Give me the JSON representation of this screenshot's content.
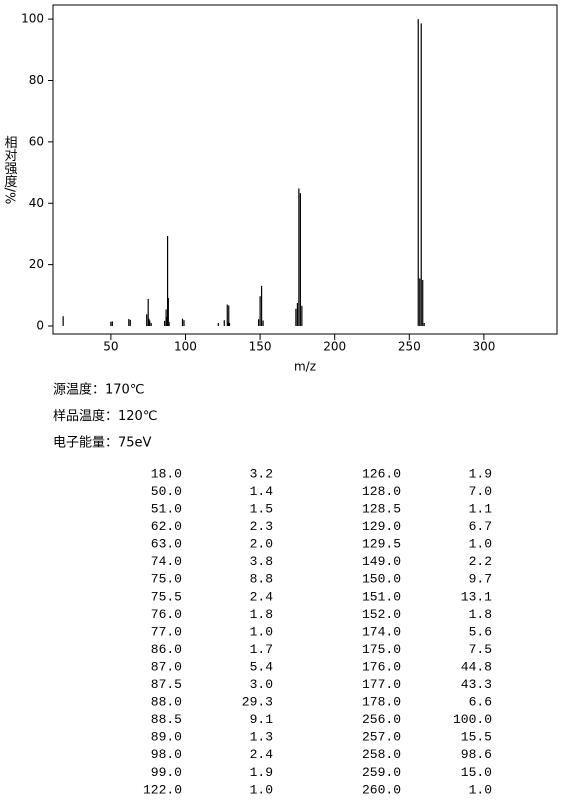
{
  "chart_data": {
    "type": "stick",
    "color": "#000000",
    "x": [
      18,
      50,
      51,
      62,
      63,
      74,
      75,
      75.5,
      76,
      77,
      86,
      87,
      87.5,
      88,
      88.5,
      89,
      98,
      99,
      122,
      126,
      128,
      128.5,
      129,
      129.5,
      149,
      150,
      151,
      152,
      174,
      175,
      176,
      177,
      178,
      256,
      257,
      258,
      259,
      260
    ],
    "x_labels": [
      "18.0",
      "50.0",
      "51.0",
      "62.0",
      "63.0",
      "74.0",
      "75.0",
      "75.5",
      "76.0",
      "77.0",
      "86.0",
      "87.0",
      "87.5",
      "88.0",
      "88.5",
      "89.0",
      "98.0",
      "99.0",
      "122.0",
      "126.0",
      "128.0",
      "128.5",
      "129.0",
      "129.5",
      "149.0",
      "150.0",
      "151.0",
      "152.0",
      "174.0",
      "175.0",
      "176.0",
      "177.0",
      "178.0",
      "256.0",
      "257.0",
      "258.0",
      "259.0",
      "260.0"
    ],
    "values": [
      3.2,
      1.4,
      1.5,
      2.3,
      2.0,
      3.8,
      8.8,
      2.4,
      1.8,
      1.0,
      1.7,
      5.4,
      3.0,
      29.3,
      9.1,
      1.3,
      2.4,
      1.9,
      1.0,
      1.9,
      7.0,
      1.1,
      6.7,
      1.0,
      2.2,
      9.7,
      13.1,
      1.8,
      5.6,
      7.5,
      44.8,
      43.3,
      6.6,
      100.0,
      15.5,
      98.6,
      15.0,
      1.0
    ],
    "value_labels": [
      "3.2",
      "1.4",
      "1.5",
      "2.3",
      "2.0",
      "3.8",
      "8.8",
      "2.4",
      "1.8",
      "1.0",
      "1.7",
      "5.4",
      "3.0",
      "29.3",
      "9.1",
      "1.3",
      "2.4",
      "1.9",
      "1.0",
      "1.9",
      "7.0",
      "1.1",
      "6.7",
      "1.0",
      "2.2",
      "9.7",
      "13.1",
      "1.8",
      "5.6",
      "7.5",
      "44.8",
      "43.3",
      "6.6",
      "100.0",
      "15.5",
      "98.6",
      "15.0",
      "1.0"
    ],
    "x_label": "m/z",
    "y_label": "相对强度/%",
    "xlim": [
      11.2,
      349
    ],
    "xticks": [
      50,
      100,
      150,
      200,
      250,
      300
    ],
    "ylim": [
      -2.6,
      104.6
    ],
    "yticks": [
      0,
      20,
      40,
      60,
      80,
      100
    ]
  },
  "info": [
    "源温度：170℃",
    "样品温度：120℃",
    "电子能量：75eV"
  ]
}
